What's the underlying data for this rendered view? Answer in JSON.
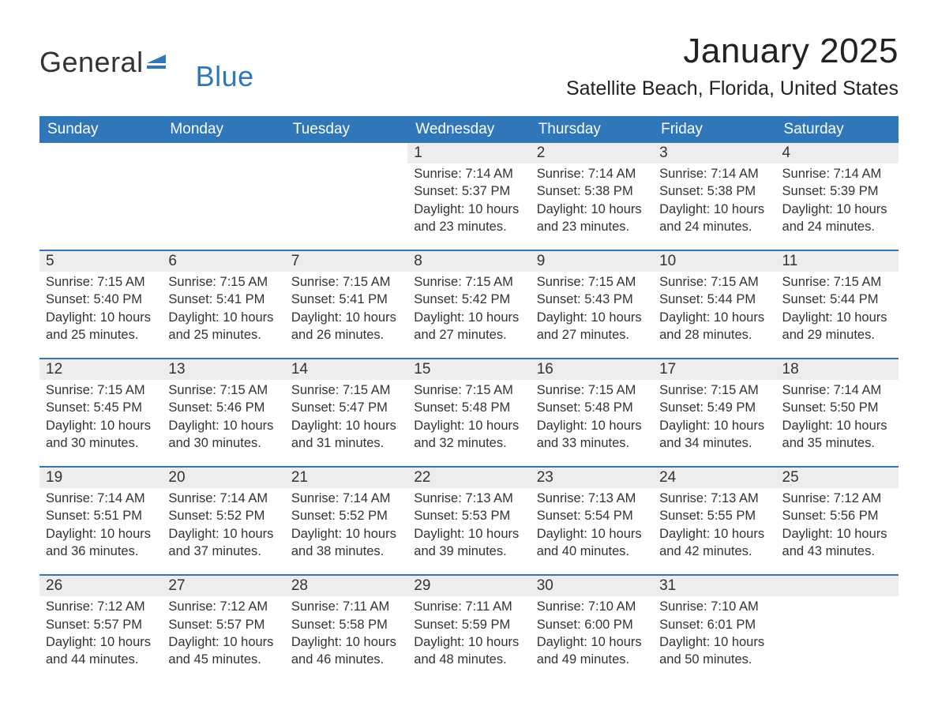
{
  "brand": {
    "word1": "General",
    "word2": "Blue",
    "flag_color": "#2f77b8"
  },
  "title": "January 2025",
  "location": "Satellite Beach, Florida, United States",
  "colors": {
    "header_bg": "#2f77b8",
    "header_text": "#ffffff",
    "daynum_bg": "#ededed",
    "row_divider": "#2f77b8",
    "body_text": "#333333",
    "page_bg": "#ffffff"
  },
  "day_headers": [
    "Sunday",
    "Monday",
    "Tuesday",
    "Wednesday",
    "Thursday",
    "Friday",
    "Saturday"
  ],
  "weeks": [
    [
      null,
      null,
      null,
      {
        "n": "1",
        "sunrise": "7:14 AM",
        "sunset": "5:37 PM",
        "daylight": "10 hours and 23 minutes."
      },
      {
        "n": "2",
        "sunrise": "7:14 AM",
        "sunset": "5:38 PM",
        "daylight": "10 hours and 23 minutes."
      },
      {
        "n": "3",
        "sunrise": "7:14 AM",
        "sunset": "5:38 PM",
        "daylight": "10 hours and 24 minutes."
      },
      {
        "n": "4",
        "sunrise": "7:14 AM",
        "sunset": "5:39 PM",
        "daylight": "10 hours and 24 minutes."
      }
    ],
    [
      {
        "n": "5",
        "sunrise": "7:15 AM",
        "sunset": "5:40 PM",
        "daylight": "10 hours and 25 minutes."
      },
      {
        "n": "6",
        "sunrise": "7:15 AM",
        "sunset": "5:41 PM",
        "daylight": "10 hours and 25 minutes."
      },
      {
        "n": "7",
        "sunrise": "7:15 AM",
        "sunset": "5:41 PM",
        "daylight": "10 hours and 26 minutes."
      },
      {
        "n": "8",
        "sunrise": "7:15 AM",
        "sunset": "5:42 PM",
        "daylight": "10 hours and 27 minutes."
      },
      {
        "n": "9",
        "sunrise": "7:15 AM",
        "sunset": "5:43 PM",
        "daylight": "10 hours and 27 minutes."
      },
      {
        "n": "10",
        "sunrise": "7:15 AM",
        "sunset": "5:44 PM",
        "daylight": "10 hours and 28 minutes."
      },
      {
        "n": "11",
        "sunrise": "7:15 AM",
        "sunset": "5:44 PM",
        "daylight": "10 hours and 29 minutes."
      }
    ],
    [
      {
        "n": "12",
        "sunrise": "7:15 AM",
        "sunset": "5:45 PM",
        "daylight": "10 hours and 30 minutes."
      },
      {
        "n": "13",
        "sunrise": "7:15 AM",
        "sunset": "5:46 PM",
        "daylight": "10 hours and 30 minutes."
      },
      {
        "n": "14",
        "sunrise": "7:15 AM",
        "sunset": "5:47 PM",
        "daylight": "10 hours and 31 minutes."
      },
      {
        "n": "15",
        "sunrise": "7:15 AM",
        "sunset": "5:48 PM",
        "daylight": "10 hours and 32 minutes."
      },
      {
        "n": "16",
        "sunrise": "7:15 AM",
        "sunset": "5:48 PM",
        "daylight": "10 hours and 33 minutes."
      },
      {
        "n": "17",
        "sunrise": "7:15 AM",
        "sunset": "5:49 PM",
        "daylight": "10 hours and 34 minutes."
      },
      {
        "n": "18",
        "sunrise": "7:14 AM",
        "sunset": "5:50 PM",
        "daylight": "10 hours and 35 minutes."
      }
    ],
    [
      {
        "n": "19",
        "sunrise": "7:14 AM",
        "sunset": "5:51 PM",
        "daylight": "10 hours and 36 minutes."
      },
      {
        "n": "20",
        "sunrise": "7:14 AM",
        "sunset": "5:52 PM",
        "daylight": "10 hours and 37 minutes."
      },
      {
        "n": "21",
        "sunrise": "7:14 AM",
        "sunset": "5:52 PM",
        "daylight": "10 hours and 38 minutes."
      },
      {
        "n": "22",
        "sunrise": "7:13 AM",
        "sunset": "5:53 PM",
        "daylight": "10 hours and 39 minutes."
      },
      {
        "n": "23",
        "sunrise": "7:13 AM",
        "sunset": "5:54 PM",
        "daylight": "10 hours and 40 minutes."
      },
      {
        "n": "24",
        "sunrise": "7:13 AM",
        "sunset": "5:55 PM",
        "daylight": "10 hours and 42 minutes."
      },
      {
        "n": "25",
        "sunrise": "7:12 AM",
        "sunset": "5:56 PM",
        "daylight": "10 hours and 43 minutes."
      }
    ],
    [
      {
        "n": "26",
        "sunrise": "7:12 AM",
        "sunset": "5:57 PM",
        "daylight": "10 hours and 44 minutes."
      },
      {
        "n": "27",
        "sunrise": "7:12 AM",
        "sunset": "5:57 PM",
        "daylight": "10 hours and 45 minutes."
      },
      {
        "n": "28",
        "sunrise": "7:11 AM",
        "sunset": "5:58 PM",
        "daylight": "10 hours and 46 minutes."
      },
      {
        "n": "29",
        "sunrise": "7:11 AM",
        "sunset": "5:59 PM",
        "daylight": "10 hours and 48 minutes."
      },
      {
        "n": "30",
        "sunrise": "7:10 AM",
        "sunset": "6:00 PM",
        "daylight": "10 hours and 49 minutes."
      },
      {
        "n": "31",
        "sunrise": "7:10 AM",
        "sunset": "6:01 PM",
        "daylight": "10 hours and 50 minutes."
      },
      null
    ]
  ],
  "labels": {
    "sunrise": "Sunrise: ",
    "sunset": "Sunset: ",
    "daylight": "Daylight: "
  }
}
